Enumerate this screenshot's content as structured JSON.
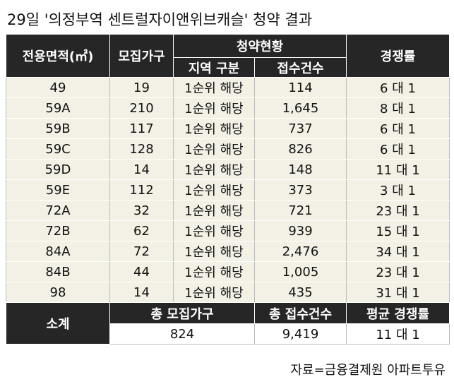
{
  "title": "29일 '의정부역 센트럴자이앤위브캐슬' 청약 결과",
  "table": {
    "header": {
      "area": "전용면적(㎡)",
      "units": "모집가구",
      "group": "청약현황",
      "region": "지역 구분",
      "applications": "접수건수",
      "ratio": "경쟁률"
    },
    "rows": [
      [
        "49",
        "19",
        "1순위 해당",
        "114",
        "6 대 1"
      ],
      [
        "59A",
        "210",
        "1순위 해당",
        "1,645",
        "8 대 1"
      ],
      [
        "59B",
        "117",
        "1순위 해당",
        "737",
        "6 대 1"
      ],
      [
        "59C",
        "128",
        "1순위 해당",
        "826",
        "6 대 1"
      ],
      [
        "59D",
        "14",
        "1순위 해당",
        "148",
        "11 대 1"
      ],
      [
        "59E",
        "112",
        "1순위 해당",
        "373",
        "3 대 1"
      ],
      [
        "72A",
        "32",
        "1순위 해당",
        "721",
        "23 대 1"
      ],
      [
        "72B",
        "62",
        "1순위 해당",
        "939",
        "15 대 1"
      ],
      [
        "84A",
        "72",
        "1순위 해당",
        "2,476",
        "34 대 1"
      ],
      [
        "84B",
        "44",
        "1순위 해당",
        "1,005",
        "23 대 1"
      ],
      [
        "98",
        "14",
        "1순위 해당",
        "435",
        "31 대 1"
      ]
    ],
    "summary": {
      "label": "소계",
      "headers": [
        "총 모집가구",
        "총 접수건수",
        "평균 경쟁률"
      ],
      "values": [
        "824",
        "9,419",
        "11 대 1"
      ]
    }
  },
  "source": "자료=금융결제원 아파트투유"
}
